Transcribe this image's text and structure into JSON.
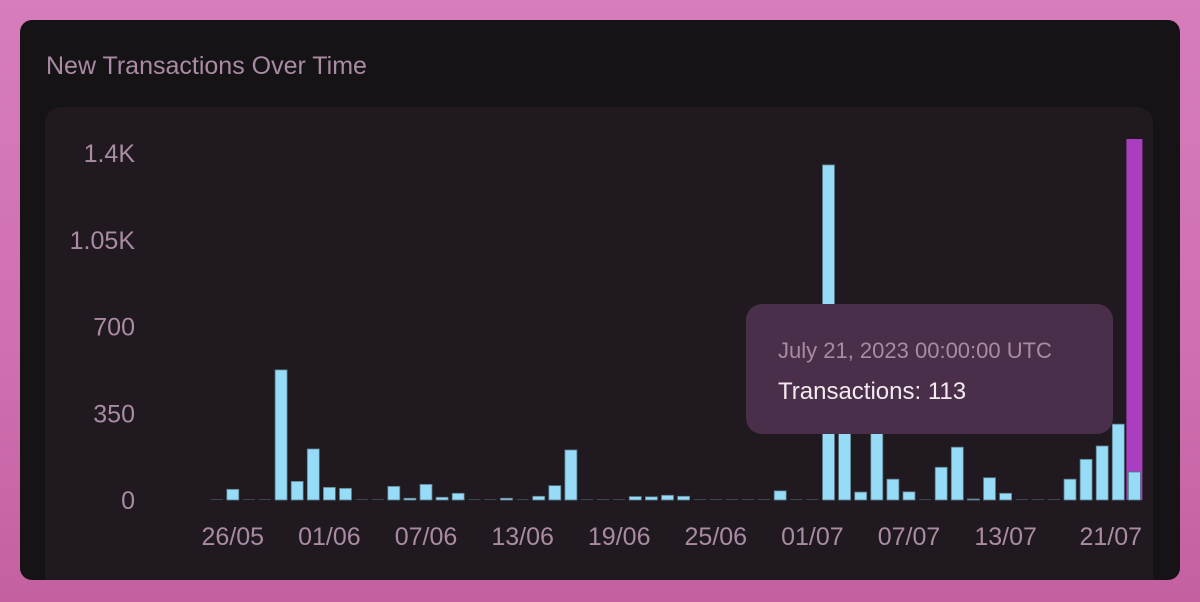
{
  "chart_data": {
    "type": "bar",
    "title": "New Transactions Over Time",
    "xlabel": "",
    "ylabel": "",
    "ylim": [
      0,
      1400
    ],
    "y_ticks": [
      "0",
      "350",
      "700",
      "1.05K",
      "1.4K"
    ],
    "y_tick_values": [
      0,
      350,
      700,
      1050,
      1400
    ],
    "x_ticks": [
      "26/05",
      "01/06",
      "07/06",
      "13/06",
      "19/06",
      "25/06",
      "01/07",
      "07/07",
      "13/07",
      "21/07"
    ],
    "categories": [
      "25/05",
      "26/05",
      "27/05",
      "28/05",
      "29/05",
      "30/05",
      "31/05",
      "01/06",
      "02/06",
      "03/06",
      "04/06",
      "05/06",
      "06/06",
      "07/06",
      "08/06",
      "09/06",
      "10/06",
      "11/06",
      "12/06",
      "13/06",
      "14/06",
      "15/06",
      "16/06",
      "17/06",
      "18/06",
      "19/06",
      "20/06",
      "21/06",
      "22/06",
      "23/06",
      "24/06",
      "25/06",
      "26/06",
      "27/06",
      "28/06",
      "29/06",
      "30/06",
      "01/07",
      "02/07",
      "03/07",
      "04/07",
      "05/07",
      "06/07",
      "07/07",
      "08/07",
      "09/07",
      "10/07",
      "11/07",
      "12/07",
      "13/07",
      "14/07",
      "15/07",
      "16/07",
      "17/07",
      "18/07",
      "19/07",
      "20/07",
      "21/07"
    ],
    "series": [
      {
        "name": "Transactions",
        "values": [
          1,
          43,
          0,
          0,
          525,
          75,
          206,
          51,
          47,
          0,
          0,
          55,
          7,
          63,
          11,
          27,
          0,
          0,
          7,
          1,
          15,
          58,
          202,
          0,
          0,
          0,
          14,
          13,
          19,
          15,
          1,
          0,
          0,
          0,
          1,
          37,
          2,
          2,
          1352,
          300,
          32,
          280,
          84,
          33,
          0,
          132,
          213,
          3,
          90,
          27,
          0,
          0,
          0,
          84,
          164,
          218,
          306,
          113
        ]
      }
    ],
    "highlighted_index": 57,
    "grid": false,
    "colors": {
      "bar": "#97dcf7",
      "highlight": "#a93ec0"
    }
  },
  "tooltip": {
    "date": "July 21, 2023 00:00:00 UTC",
    "value_text": "Transactions: 113"
  }
}
